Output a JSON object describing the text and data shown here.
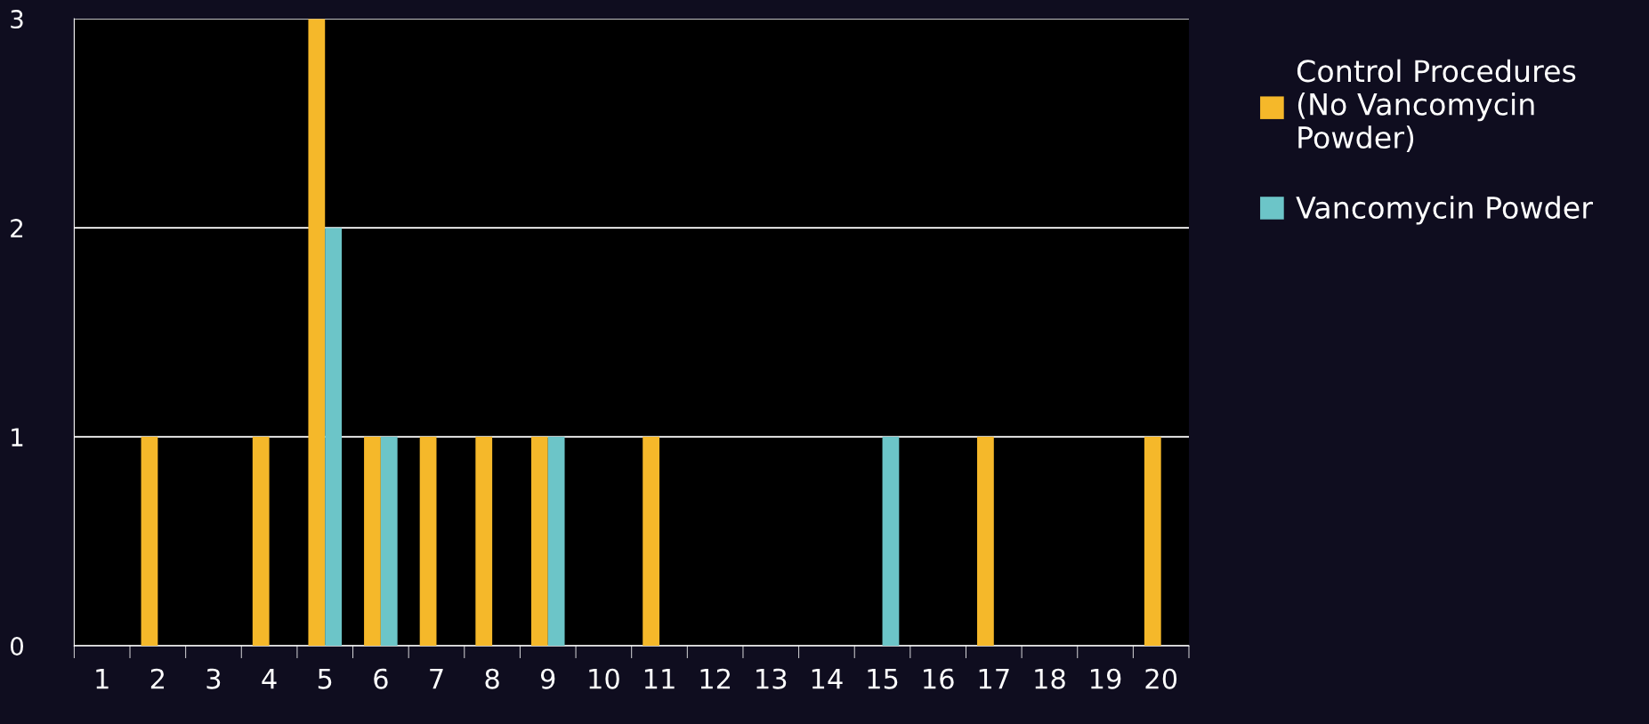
{
  "chart_data": {
    "type": "bar",
    "categories": [
      "1",
      "2",
      "3",
      "4",
      "5",
      "6",
      "7",
      "8",
      "9",
      "10",
      "11",
      "12",
      "13",
      "14",
      "15",
      "16",
      "17",
      "18",
      "19",
      "20"
    ],
    "series": [
      {
        "name": "Control Procedures\n(No Vancomycin\nPowder)",
        "color": "#f5b82a",
        "values": [
          0,
          1,
          0,
          1,
          3,
          1,
          1,
          1,
          1,
          0,
          1,
          0,
          0,
          0,
          0,
          0,
          1,
          0,
          0,
          1
        ]
      },
      {
        "name": "Vancomycin Powder",
        "color": "#6cc5c8",
        "values": [
          0,
          0,
          0,
          0,
          2,
          1,
          0,
          0,
          1,
          0,
          0,
          0,
          0,
          0,
          1,
          0,
          0,
          0,
          0,
          0
        ]
      }
    ],
    "ylim": [
      0,
      3
    ],
    "yticks": [
      0,
      1,
      2,
      3
    ],
    "grid": "y",
    "legend": "top right"
  }
}
